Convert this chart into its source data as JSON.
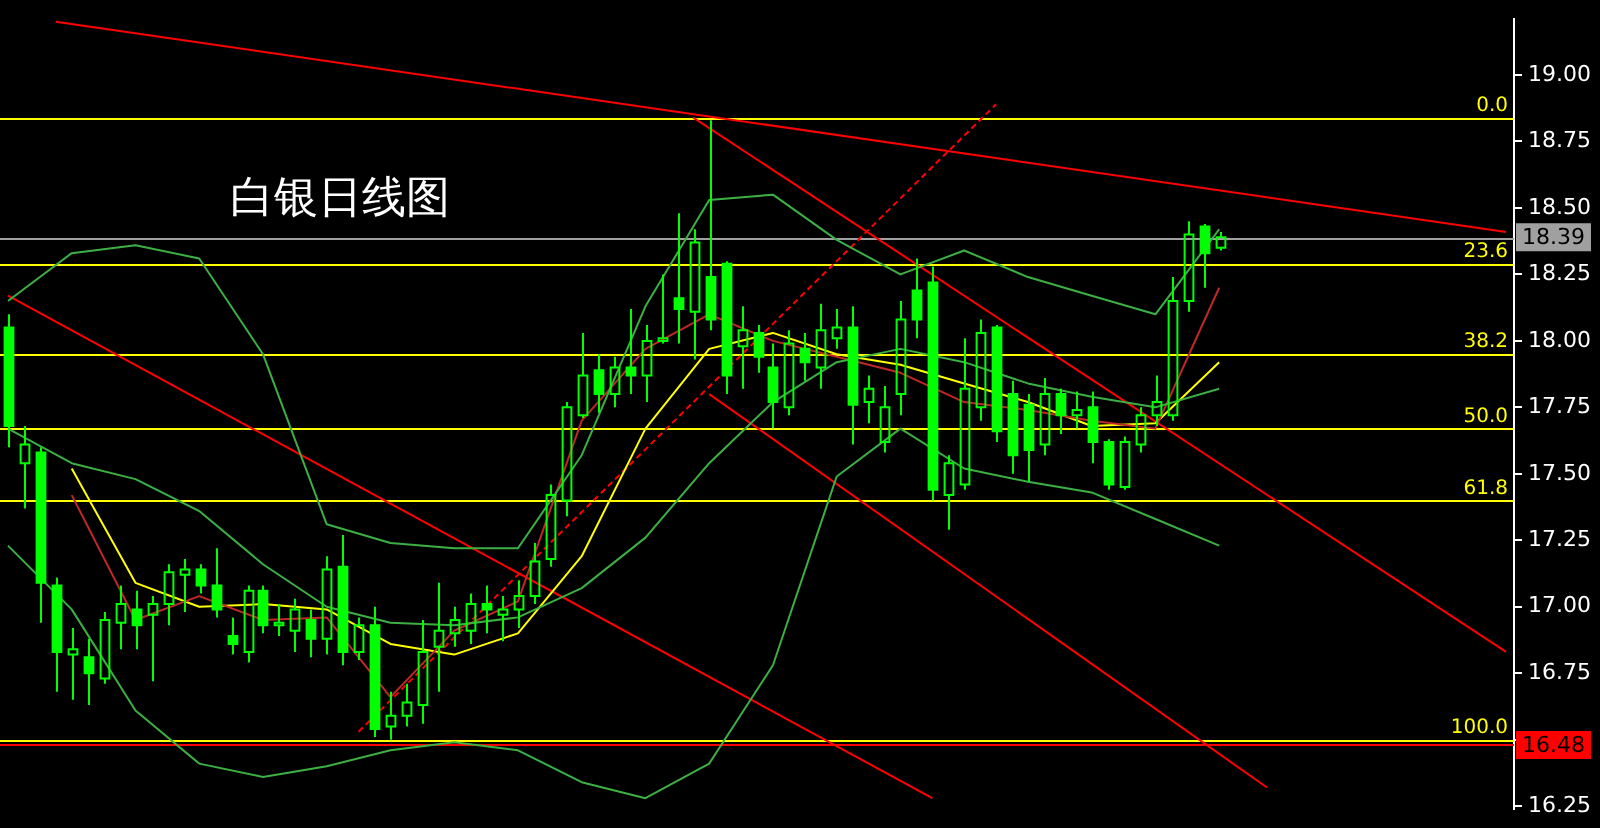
{
  "chart_data": {
    "type": "candlestick",
    "title": "白银日线图",
    "color": "#00ff00",
    "categories": [
      null,
      null,
      null,
      null,
      null,
      null,
      null,
      null,
      null,
      null,
      null,
      null,
      null,
      null,
      null,
      null,
      null,
      null,
      null,
      null,
      null,
      null,
      null,
      null,
      null,
      null,
      null,
      null,
      null,
      null,
      null,
      null,
      null,
      null,
      null,
      null,
      null,
      null,
      null,
      null,
      null,
      null,
      null,
      null,
      null,
      null,
      null,
      null,
      null,
      null,
      null,
      null,
      null,
      null,
      null,
      null,
      null,
      null,
      null,
      null,
      null,
      null,
      null,
      null,
      null,
      null,
      null,
      null,
      null,
      null,
      null,
      null,
      null,
      null,
      null,
      null,
      null,
      null,
      null,
      null,
      null,
      null,
      null,
      null,
      null,
      null,
      null,
      null,
      null,
      null,
      null,
      null,
      null,
      null,
      null
    ],
    "ohlc": [
      [
        18.05,
        18.1,
        17.6,
        17.68
      ],
      [
        17.54,
        17.68,
        17.37,
        17.61
      ],
      [
        17.58,
        17.6,
        16.94,
        17.09
      ],
      [
        17.08,
        17.11,
        16.68,
        16.83
      ],
      [
        16.82,
        16.92,
        16.65,
        16.84
      ],
      [
        16.81,
        16.88,
        16.63,
        16.75
      ],
      [
        16.73,
        16.98,
        16.71,
        16.95
      ],
      [
        16.94,
        17.08,
        16.84,
        17.01
      ],
      [
        16.99,
        17.06,
        16.84,
        16.93
      ],
      [
        16.97,
        17.04,
        16.72,
        17.01
      ],
      [
        17.01,
        17.16,
        16.93,
        17.13
      ],
      [
        17.12,
        17.18,
        16.98,
        17.14
      ],
      [
        17.14,
        17.16,
        17.05,
        17.08
      ],
      [
        17.08,
        17.22,
        16.96,
        16.99
      ],
      [
        16.89,
        16.96,
        16.82,
        16.86
      ],
      [
        16.83,
        17.08,
        16.79,
        17.06
      ],
      [
        17.06,
        17.08,
        16.9,
        16.93
      ],
      [
        16.93,
        17.01,
        16.89,
        16.94
      ],
      [
        16.91,
        17.03,
        16.83,
        16.99
      ],
      [
        16.95,
        16.99,
        16.81,
        16.88
      ],
      [
        16.88,
        17.19,
        16.82,
        17.14
      ],
      [
        17.15,
        17.27,
        16.78,
        16.83
      ],
      [
        16.83,
        16.96,
        16.8,
        16.93
      ],
      [
        16.93,
        17.0,
        16.51,
        16.54
      ],
      [
        16.55,
        16.68,
        16.5,
        16.59
      ],
      [
        16.59,
        16.71,
        16.55,
        16.64
      ],
      [
        16.63,
        16.95,
        16.56,
        16.83
      ],
      [
        16.85,
        17.09,
        16.68,
        16.91
      ],
      [
        16.9,
        17.0,
        16.85,
        16.95
      ],
      [
        16.91,
        17.05,
        16.86,
        17.01
      ],
      [
        17.01,
        17.08,
        16.9,
        16.99
      ],
      [
        16.97,
        17.04,
        16.87,
        16.99
      ],
      [
        16.99,
        17.1,
        16.92,
        17.04
      ],
      [
        17.04,
        17.24,
        17.01,
        17.17
      ],
      [
        17.18,
        17.46,
        17.15,
        17.42
      ],
      [
        17.4,
        17.77,
        17.34,
        17.75
      ],
      [
        17.72,
        18.03,
        17.71,
        17.87
      ],
      [
        17.89,
        17.95,
        17.73,
        17.8
      ],
      [
        17.8,
        17.94,
        17.75,
        17.9
      ],
      [
        17.9,
        18.12,
        17.8,
        17.87
      ],
      [
        17.87,
        18.06,
        17.77,
        18.0
      ],
      [
        18.0,
        18.25,
        17.99,
        18.01
      ],
      [
        18.16,
        18.48,
        17.99,
        18.12
      ],
      [
        18.11,
        18.42,
        17.93,
        18.37
      ],
      [
        18.24,
        18.83,
        18.04,
        18.08
      ],
      [
        18.29,
        18.3,
        17.8,
        17.87
      ],
      [
        17.98,
        18.13,
        17.82,
        18.04
      ],
      [
        18.03,
        18.06,
        17.88,
        17.94
      ],
      [
        17.9,
        17.99,
        17.67,
        17.77
      ],
      [
        17.75,
        18.04,
        17.72,
        17.99
      ],
      [
        17.97,
        18.03,
        17.85,
        17.92
      ],
      [
        17.9,
        18.14,
        17.82,
        18.04
      ],
      [
        18.01,
        18.12,
        17.97,
        18.05
      ],
      [
        18.05,
        18.13,
        17.61,
        17.76
      ],
      [
        17.77,
        17.87,
        17.69,
        17.82
      ],
      [
        17.62,
        17.83,
        17.58,
        17.75
      ],
      [
        17.8,
        18.15,
        17.72,
        18.08
      ],
      [
        18.19,
        18.31,
        18.01,
        18.08
      ],
      [
        18.22,
        18.28,
        17.4,
        17.44
      ],
      [
        17.42,
        17.57,
        17.29,
        17.54
      ],
      [
        17.46,
        18.01,
        17.44,
        17.82
      ],
      [
        17.75,
        18.08,
        17.7,
        18.03
      ],
      [
        18.05,
        18.06,
        17.62,
        17.66
      ],
      [
        17.8,
        17.85,
        17.5,
        17.57
      ],
      [
        17.76,
        17.8,
        17.47,
        17.59
      ],
      [
        17.61,
        17.86,
        17.57,
        17.8
      ],
      [
        17.8,
        17.82,
        17.65,
        17.72
      ],
      [
        17.72,
        17.81,
        17.67,
        17.74
      ],
      [
        17.75,
        17.81,
        17.54,
        17.62
      ],
      [
        17.62,
        17.63,
        17.44,
        17.46
      ],
      [
        17.45,
        17.64,
        17.44,
        17.62
      ],
      [
        17.61,
        17.75,
        17.58,
        17.72
      ],
      [
        17.72,
        17.87,
        17.68,
        17.77
      ],
      [
        17.72,
        18.24,
        17.7,
        18.15
      ],
      [
        18.15,
        18.45,
        18.11,
        18.4
      ],
      [
        18.43,
        18.44,
        18.2,
        18.33
      ],
      [
        18.35,
        18.41,
        18.34,
        18.39
      ],
      null,
      null,
      null,
      null,
      null,
      null,
      null,
      null,
      null,
      null,
      null,
      null,
      null,
      null,
      null,
      null,
      null,
      null
    ],
    "series": [
      {
        "type": "line",
        "color": "#3cb043",
        "values": [
          18.15,
          null,
          null,
          null,
          18.33,
          null,
          null,
          null,
          18.36,
          null,
          null,
          null,
          18.31,
          null,
          null,
          null,
          17.95,
          null,
          null,
          null,
          17.31,
          null,
          null,
          null,
          17.24,
          null,
          null,
          null,
          17.22,
          null,
          null,
          null,
          17.22,
          null,
          null,
          null,
          17.57,
          null,
          null,
          null,
          18.13,
          null,
          null,
          null,
          18.53,
          null,
          null,
          null,
          18.55,
          null,
          null,
          null,
          18.38,
          null,
          null,
          null,
          18.25,
          null,
          null,
          null,
          18.34,
          null,
          null,
          null,
          18.24,
          null,
          null,
          null,
          18.17,
          null,
          null,
          null,
          18.1,
          null,
          null,
          null,
          18.42,
          null,
          null,
          null,
          null,
          null,
          null,
          null,
          null,
          null,
          null,
          null,
          null,
          null,
          null,
          null,
          null,
          null,
          null
        ]
      },
      {
        "type": "line",
        "color": "#3cb043",
        "values": [
          17.67,
          null,
          null,
          null,
          17.54,
          null,
          null,
          null,
          17.48,
          null,
          null,
          null,
          17.36,
          null,
          null,
          null,
          17.16,
          null,
          null,
          null,
          17.0,
          null,
          null,
          null,
          16.94,
          null,
          null,
          null,
          16.93,
          null,
          null,
          null,
          16.96,
          null,
          null,
          null,
          17.07,
          null,
          null,
          null,
          17.26,
          null,
          null,
          null,
          17.54,
          null,
          null,
          null,
          17.77,
          null,
          null,
          null,
          17.92,
          null,
          null,
          null,
          17.97,
          null,
          null,
          null,
          17.92,
          null,
          null,
          null,
          17.84,
          null,
          null,
          null,
          17.79,
          null,
          null,
          null,
          17.75,
          null,
          null,
          null,
          17.82,
          null,
          null,
          null,
          null,
          null,
          null,
          null,
          null,
          null,
          null,
          null,
          null,
          null,
          null,
          null,
          null,
          null,
          null
        ]
      },
      {
        "type": "line",
        "color": "#3cb043",
        "values": [
          17.23,
          null,
          null,
          null,
          16.99,
          null,
          null,
          null,
          16.61,
          null,
          null,
          null,
          16.41,
          null,
          null,
          null,
          16.36,
          null,
          null,
          null,
          16.4,
          null,
          null,
          null,
          16.46,
          null,
          null,
          null,
          16.49,
          null,
          null,
          null,
          16.46,
          null,
          null,
          null,
          16.34,
          null,
          null,
          null,
          16.28,
          null,
          null,
          null,
          16.41,
          null,
          null,
          null,
          16.78,
          null,
          null,
          null,
          17.49,
          null,
          null,
          null,
          17.67,
          null,
          null,
          null,
          17.52,
          null,
          null,
          null,
          17.47,
          null,
          null,
          null,
          17.43,
          null,
          null,
          null,
          17.33,
          null,
          null,
          null,
          17.23,
          null,
          null,
          null,
          null,
          null,
          null,
          null,
          null,
          null,
          null,
          null,
          null,
          null,
          null,
          null,
          null,
          null,
          null
        ]
      },
      {
        "type": "line",
        "color": "#c02828",
        "values": [
          null,
          null,
          null,
          null,
          17.42,
          null,
          null,
          null,
          16.95,
          null,
          null,
          null,
          17.04,
          null,
          null,
          null,
          16.95,
          null,
          null,
          null,
          16.96,
          null,
          null,
          null,
          16.66,
          null,
          null,
          null,
          16.91,
          null,
          null,
          null,
          17.02,
          null,
          null,
          null,
          17.7,
          null,
          null,
          null,
          17.97,
          null,
          null,
          null,
          18.1,
          null,
          null,
          null,
          18.0,
          null,
          null,
          null,
          17.94,
          null,
          null,
          null,
          17.88,
          null,
          null,
          null,
          17.77,
          null,
          null,
          null,
          17.74,
          null,
          null,
          null,
          17.7,
          null,
          null,
          null,
          17.67,
          null,
          null,
          null,
          18.2,
          null,
          null,
          null,
          null,
          null,
          null,
          null,
          null,
          null,
          null,
          null,
          null,
          null,
          null,
          null,
          null,
          null,
          null
        ]
      },
      {
        "type": "line",
        "color": "#ffff00",
        "values": [
          null,
          null,
          null,
          null,
          17.52,
          null,
          null,
          null,
          17.09,
          null,
          null,
          null,
          17.0,
          null,
          null,
          null,
          17.01,
          null,
          null,
          null,
          16.99,
          null,
          null,
          null,
          16.86,
          null,
          null,
          null,
          16.82,
          null,
          null,
          null,
          16.9,
          null,
          null,
          null,
          17.19,
          null,
          null,
          null,
          17.67,
          null,
          null,
          null,
          17.97,
          null,
          null,
          null,
          18.03,
          null,
          null,
          null,
          17.95,
          null,
          null,
          null,
          17.91,
          null,
          null,
          null,
          17.84,
          null,
          null,
          null,
          17.77,
          null,
          null,
          null,
          17.68,
          null,
          null,
          null,
          17.69,
          null,
          null,
          null,
          17.92,
          null,
          null,
          null,
          null,
          null,
          null,
          null,
          null,
          null,
          null,
          null,
          null,
          null,
          null,
          null,
          null,
          null,
          null
        ]
      },
      {
        "type": "line",
        "color": "#ff0000",
        "values": [
          null,
          null,
          null,
          19.2,
          null,
          null,
          null,
          null,
          null,
          null,
          null,
          null,
          null,
          null,
          null,
          null,
          null,
          null,
          null,
          null,
          null,
          null,
          null,
          null,
          null,
          null,
          null,
          null,
          null,
          null,
          null,
          null,
          null,
          null,
          null,
          null,
          null,
          null,
          null,
          null,
          null,
          null,
          null,
          null,
          null,
          null,
          null,
          null,
          null,
          null,
          null,
          null,
          null,
          null,
          null,
          null,
          null,
          null,
          null,
          null,
          null,
          null,
          null,
          null,
          null,
          null,
          null,
          null,
          null,
          null,
          null,
          null,
          null,
          null,
          null,
          null,
          null,
          null,
          null,
          null,
          null,
          null,
          null,
          null,
          null,
          null,
          null,
          null,
          null,
          null,
          null,
          null,
          null,
          null,
          18.41
        ]
      },
      {
        "type": "line",
        "color": "#ff0000",
        "values": [
          18.17,
          null,
          null,
          null,
          null,
          null,
          null,
          null,
          null,
          null,
          null,
          null,
          null,
          null,
          null,
          null,
          null,
          null,
          null,
          null,
          null,
          null,
          null,
          null,
          null,
          null,
          null,
          null,
          null,
          null,
          null,
          null,
          null,
          null,
          null,
          null,
          null,
          null,
          null,
          null,
          null,
          null,
          null,
          null,
          null,
          null,
          null,
          null,
          null,
          null,
          null,
          null,
          null,
          null,
          null,
          null,
          null,
          null,
          16.28,
          null,
          null,
          null,
          null,
          null,
          null,
          null,
          null,
          null,
          null,
          null,
          null,
          null,
          null,
          null,
          null,
          null,
          null,
          null,
          null,
          null,
          null,
          null,
          null,
          null,
          null,
          null,
          null,
          null,
          null,
          null,
          null,
          null,
          null,
          null,
          null
        ]
      },
      {
        "type": "line",
        "color": "#ff0000",
        "values": [
          null,
          null,
          null,
          null,
          null,
          null,
          null,
          null,
          null,
          null,
          null,
          null,
          null,
          null,
          null,
          null,
          null,
          null,
          null,
          null,
          null,
          null,
          null,
          null,
          null,
          null,
          null,
          null,
          null,
          null,
          null,
          null,
          null,
          null,
          null,
          null,
          null,
          null,
          null,
          null,
          null,
          null,
          null,
          18.84,
          null,
          null,
          null,
          null,
          null,
          null,
          null,
          null,
          null,
          null,
          null,
          null,
          null,
          null,
          null,
          null,
          null,
          null,
          null,
          null,
          null,
          null,
          null,
          null,
          null,
          null,
          null,
          null,
          null,
          null,
          null,
          null,
          null,
          null,
          null,
          null,
          null,
          null,
          null,
          null,
          null,
          null,
          null,
          null,
          null,
          null,
          null,
          null,
          null,
          null,
          16.83
        ]
      },
      {
        "type": "line",
        "color": "#ff0000",
        "values": [
          null,
          null,
          null,
          null,
          null,
          null,
          null,
          null,
          null,
          null,
          null,
          null,
          null,
          null,
          null,
          null,
          null,
          null,
          null,
          null,
          null,
          null,
          null,
          null,
          null,
          null,
          null,
          null,
          null,
          null,
          null,
          null,
          null,
          null,
          null,
          null,
          null,
          null,
          null,
          null,
          null,
          null,
          null,
          null,
          17.8,
          null,
          null,
          null,
          null,
          null,
          null,
          null,
          null,
          null,
          null,
          null,
          null,
          null,
          null,
          null,
          null,
          null,
          null,
          null,
          null,
          null,
          null,
          null,
          null,
          null,
          null,
          null,
          null,
          null,
          null,
          null,
          null,
          null,
          null,
          16.32,
          null,
          null,
          null,
          null,
          null,
          null,
          null,
          null,
          null,
          null,
          null,
          null,
          null,
          null,
          null
        ]
      },
      {
        "type": "line",
        "color": "#ff0000",
        "line_style": "dashed",
        "values": [
          null,
          null,
          null,
          null,
          null,
          null,
          null,
          null,
          null,
          null,
          null,
          null,
          null,
          null,
          null,
          null,
          null,
          null,
          null,
          null,
          null,
          null,
          16.53,
          null,
          null,
          null,
          null,
          null,
          null,
          null,
          null,
          null,
          null,
          null,
          null,
          null,
          null,
          null,
          null,
          null,
          null,
          null,
          null,
          null,
          null,
          null,
          null,
          null,
          null,
          null,
          null,
          null,
          null,
          null,
          null,
          null,
          null,
          null,
          null,
          null,
          null,
          null,
          18.89,
          null,
          null,
          null,
          null,
          null,
          null,
          null,
          null,
          null,
          null,
          null,
          null,
          null,
          null,
          null,
          null,
          null,
          null,
          null,
          null,
          null,
          null,
          null,
          null,
          null,
          null,
          null,
          null,
          null,
          null,
          null,
          null
        ]
      }
    ],
    "ylim": [
      16.24,
      19.21
    ],
    "yticks": [
      {
        "value": 16.25,
        "label": "16.25"
      },
      {
        "value": 16.5,
        "label": null
      },
      {
        "value": 16.75,
        "label": "16.75"
      },
      {
        "value": 17,
        "label": "17.00"
      },
      {
        "value": 17.25,
        "label": "17.25"
      },
      {
        "value": 17.5,
        "label": "17.50"
      },
      {
        "value": 17.75,
        "label": "17.75"
      },
      {
        "value": 18,
        "label": "18.00"
      },
      {
        "value": 18.25,
        "label": "18.25"
      },
      {
        "value": 18.5,
        "label": "18.50"
      },
      {
        "value": 18.75,
        "label": "18.75"
      },
      {
        "value": 19,
        "label": "19.00"
      }
    ],
    "ref_lines": [
      {
        "axis": "y",
        "value": 18.84,
        "color": "#ffff00"
      },
      {
        "axis": "y",
        "value": 18.29,
        "color": "#ffff00"
      },
      {
        "axis": "y",
        "value": 17.95,
        "color": "#ffff00"
      },
      {
        "axis": "y",
        "value": 17.67,
        "color": "#ffff00"
      },
      {
        "axis": "y",
        "value": 17.4,
        "color": "#ffff00"
      },
      {
        "axis": "y",
        "value": 16.5,
        "color": "#ffff00"
      },
      {
        "axis": "y",
        "value": 18.39,
        "label": "18.39",
        "color": "#a0a0a0"
      },
      {
        "axis": "y",
        "value": 16.48,
        "label": "16.48",
        "color": "#ff0000"
      }
    ],
    "annotations": [
      {
        "text": "0.0",
        "y": 18.84
      },
      {
        "text": "23.6",
        "y": 18.29
      },
      {
        "text": "38.2",
        "y": 17.95
      },
      {
        "text": "50.0",
        "y": 17.67
      },
      {
        "text": "61.8",
        "y": 17.4
      },
      {
        "text": "100.0",
        "y": 16.5
      }
    ],
    "tick_labels": "y",
    "grid": false,
    "legend": false
  }
}
